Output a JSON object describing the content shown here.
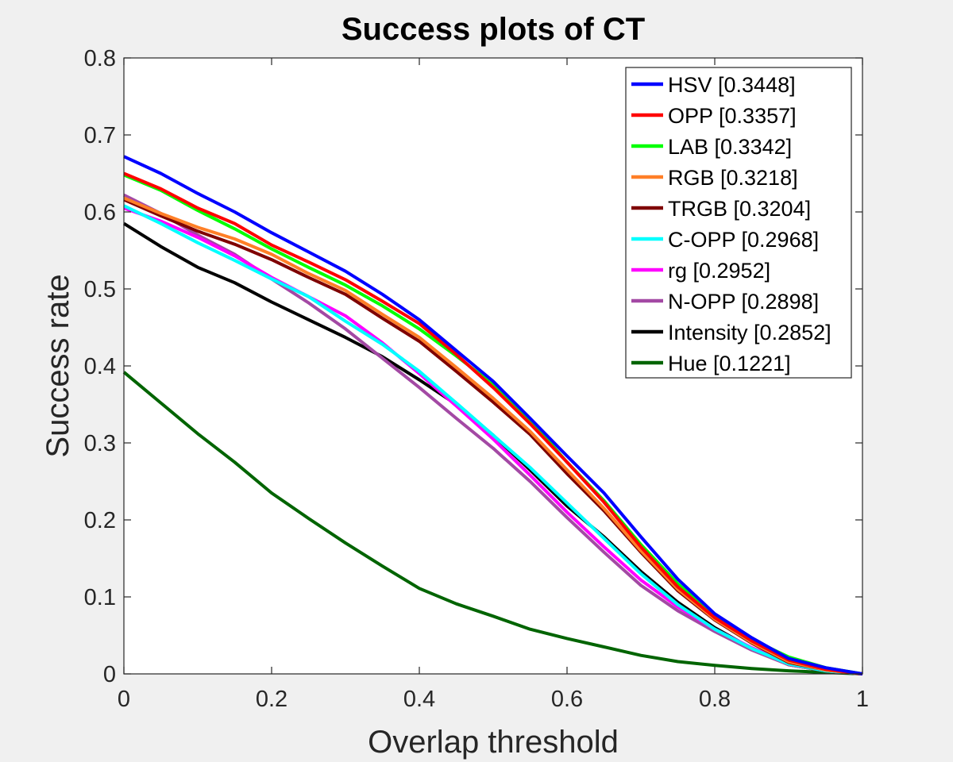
{
  "chart_data": {
    "type": "line",
    "title": "Success plots of CT",
    "xlabel": "Overlap threshold",
    "ylabel": "Success rate",
    "xlim": [
      0,
      1
    ],
    "ylim": [
      0,
      0.8
    ],
    "xticks": [
      "0",
      "0.2",
      "0.4",
      "0.6",
      "0.8",
      "1"
    ],
    "yticks": [
      "0",
      "0.1",
      "0.2",
      "0.3",
      "0.4",
      "0.5",
      "0.6",
      "0.7",
      "0.8"
    ],
    "legend_position": "top-right",
    "grid": false,
    "x": [
      0,
      0.05,
      0.1,
      0.15,
      0.2,
      0.25,
      0.3,
      0.35,
      0.4,
      0.45,
      0.5,
      0.55,
      0.6,
      0.65,
      0.7,
      0.75,
      0.8,
      0.85,
      0.9,
      0.95,
      1
    ],
    "series": [
      {
        "name": "HSV [0.3448]",
        "color": "#0000ff",
        "values": [
          0.672,
          0.65,
          0.624,
          0.6,
          0.573,
          0.548,
          0.523,
          0.493,
          0.46,
          0.42,
          0.38,
          0.332,
          0.283,
          0.235,
          0.178,
          0.123,
          0.078,
          0.047,
          0.02,
          0.008,
          0.0
        ]
      },
      {
        "name": "OPP [0.3357]",
        "color": "#ff0000",
        "values": [
          0.65,
          0.63,
          0.605,
          0.585,
          0.557,
          0.535,
          0.512,
          0.484,
          0.455,
          0.415,
          0.372,
          0.325,
          0.275,
          0.223,
          0.165,
          0.113,
          0.073,
          0.043,
          0.018,
          0.006,
          0.0
        ]
      },
      {
        "name": "LAB [0.3342]",
        "color": "#00ff00",
        "values": [
          0.648,
          0.628,
          0.602,
          0.578,
          0.552,
          0.528,
          0.505,
          0.478,
          0.448,
          0.413,
          0.376,
          0.33,
          0.275,
          0.225,
          0.168,
          0.117,
          0.075,
          0.045,
          0.022,
          0.008,
          0.0
        ]
      },
      {
        "name": "RGB [0.3218]",
        "color": "#ff7f27",
        "values": [
          0.618,
          0.598,
          0.58,
          0.565,
          0.545,
          0.52,
          0.498,
          0.467,
          0.437,
          0.398,
          0.358,
          0.315,
          0.265,
          0.215,
          0.16,
          0.11,
          0.071,
          0.041,
          0.016,
          0.005,
          0.0
        ]
      },
      {
        "name": "TRGB [0.3204]",
        "color": "#7f0000",
        "values": [
          0.616,
          0.595,
          0.575,
          0.558,
          0.538,
          0.515,
          0.493,
          0.462,
          0.432,
          0.393,
          0.353,
          0.311,
          0.26,
          0.212,
          0.158,
          0.108,
          0.07,
          0.04,
          0.015,
          0.005,
          0.0
        ]
      },
      {
        "name": "C-OPP [0.2968]",
        "color": "#00ffff",
        "values": [
          0.608,
          0.585,
          0.56,
          0.537,
          0.513,
          0.49,
          0.458,
          0.428,
          0.393,
          0.352,
          0.31,
          0.268,
          0.222,
          0.176,
          0.13,
          0.09,
          0.058,
          0.033,
          0.013,
          0.004,
          0.0
        ]
      },
      {
        "name": "rg [0.2952]",
        "color": "#ff00ff",
        "values": [
          0.605,
          0.588,
          0.567,
          0.543,
          0.515,
          0.49,
          0.465,
          0.43,
          0.39,
          0.348,
          0.305,
          0.258,
          0.21,
          0.165,
          0.122,
          0.087,
          0.058,
          0.034,
          0.014,
          0.004,
          0.0
        ]
      },
      {
        "name": "N-OPP [0.2898]",
        "color": "#a349a4",
        "values": [
          0.622,
          0.598,
          0.57,
          0.545,
          0.513,
          0.482,
          0.448,
          0.41,
          0.372,
          0.332,
          0.293,
          0.25,
          0.203,
          0.158,
          0.115,
          0.082,
          0.055,
          0.031,
          0.012,
          0.004,
          0.0
        ]
      },
      {
        "name": "Intensity [0.2852]",
        "color": "#000000",
        "values": [
          0.585,
          0.555,
          0.528,
          0.508,
          0.483,
          0.46,
          0.437,
          0.412,
          0.382,
          0.35,
          0.31,
          0.265,
          0.218,
          0.178,
          0.133,
          0.093,
          0.06,
          0.033,
          0.012,
          0.004,
          0.0
        ]
      },
      {
        "name": "Hue [0.1221]",
        "color": "#006400",
        "values": [
          0.392,
          0.352,
          0.312,
          0.275,
          0.235,
          0.202,
          0.17,
          0.14,
          0.111,
          0.091,
          0.075,
          0.058,
          0.046,
          0.035,
          0.024,
          0.016,
          0.011,
          0.007,
          0.004,
          0.002,
          0.0
        ]
      }
    ]
  }
}
